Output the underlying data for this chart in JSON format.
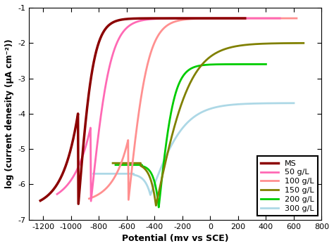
{
  "xlabel": "Potential (mv vs SCE)",
  "ylabel": "log (current denesity (μA cm⁻²))",
  "xlim": [
    -1300,
    800
  ],
  "ylim": [
    -7,
    -1
  ],
  "xticks": [
    -1200,
    -1000,
    -800,
    -600,
    -400,
    -200,
    0,
    200,
    400,
    600,
    800
  ],
  "yticks": [
    -7,
    -6,
    -5,
    -4,
    -3,
    -2,
    -1
  ],
  "colors": {
    "MS": "#8B0000",
    "50gL": "#FF69B4",
    "100gL": "#FF9090",
    "150gL": "#808000",
    "200gL": "#00CC00",
    "300gL": "#ADD8E6"
  },
  "linewidth": 2.0
}
